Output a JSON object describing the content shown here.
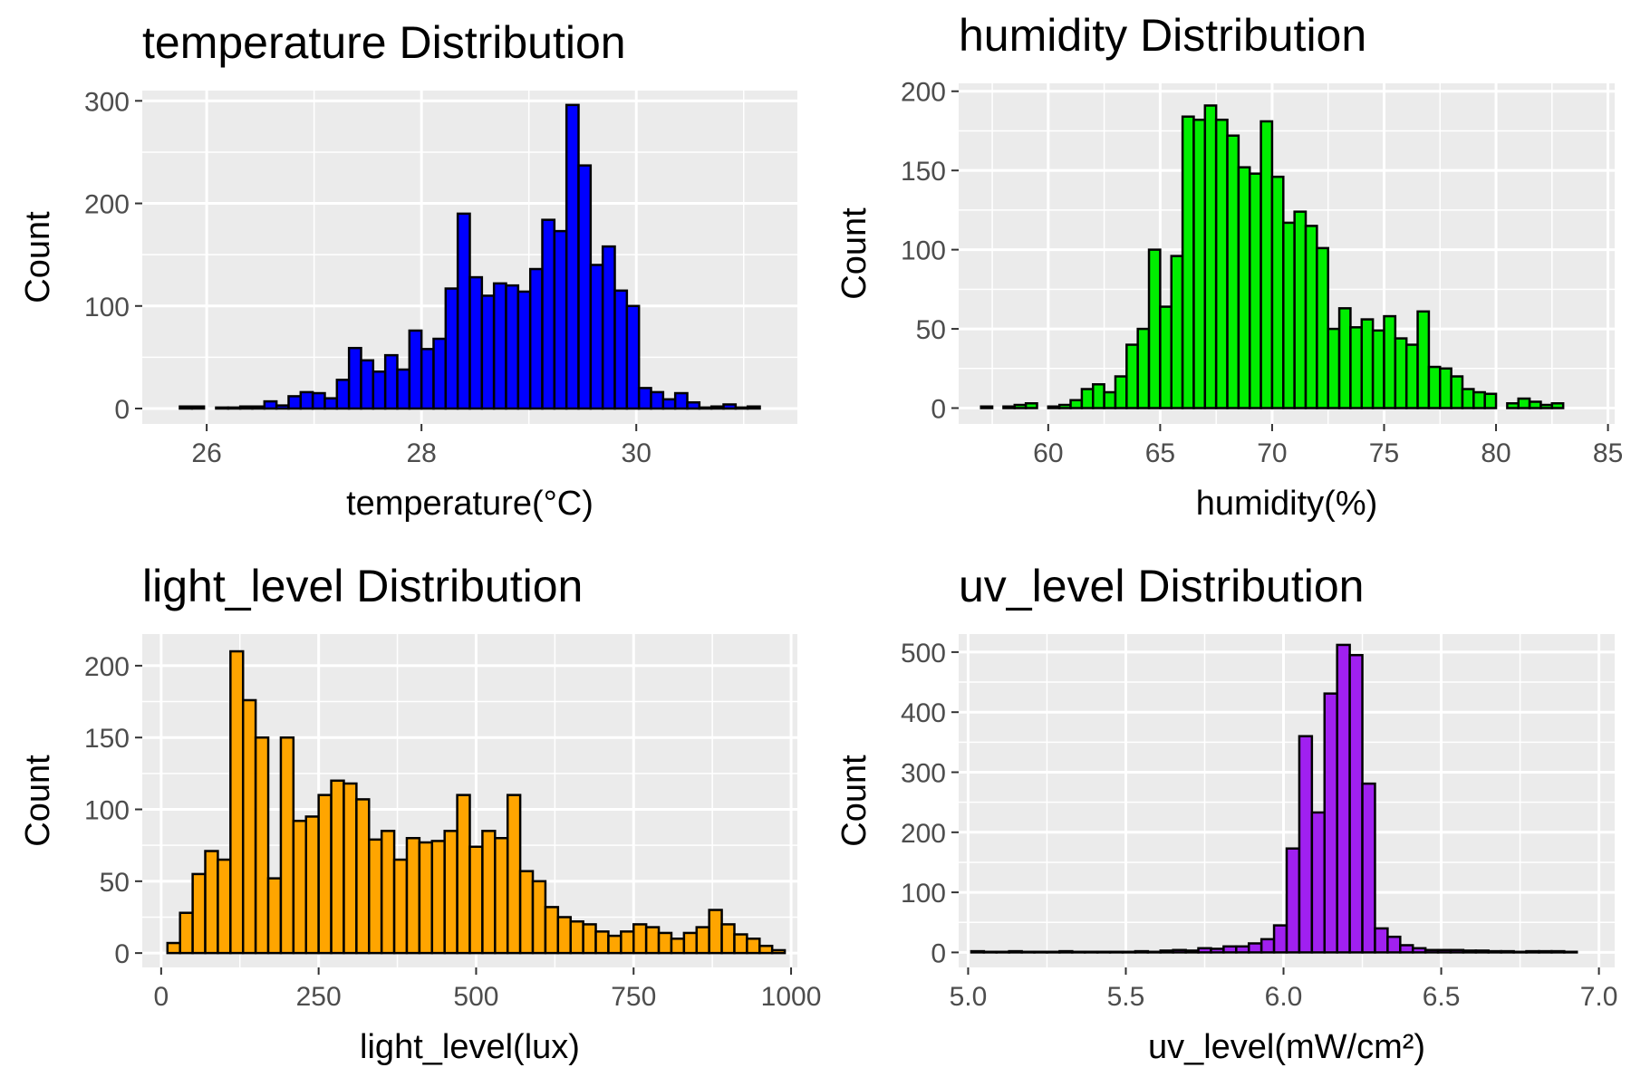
{
  "chart_data": [
    {
      "type": "bar",
      "title": "temperature Distribution",
      "xlabel": "temperature(°C)",
      "ylabel": "Count",
      "fill": "#0000ff",
      "edge": "#000000",
      "x_start": 25.75,
      "bin_width": 0.1125,
      "values": [
        2,
        2,
        0,
        1,
        1,
        2,
        2,
        7,
        3,
        12,
        16,
        15,
        10,
        28,
        59,
        47,
        36,
        52,
        38,
        76,
        58,
        68,
        117,
        190,
        128,
        110,
        122,
        120,
        114,
        136,
        184,
        173,
        296,
        237,
        140,
        158,
        115,
        100,
        20,
        16,
        9,
        15,
        6,
        1,
        2,
        4,
        1,
        2
      ],
      "xlim": [
        25.4,
        31.5
      ],
      "ylim": [
        -15,
        310
      ],
      "x_ticks": [
        26,
        28,
        30
      ],
      "x_tick_labels": [
        "26",
        "28",
        "30"
      ],
      "y_ticks": [
        0,
        100,
        200,
        300
      ],
      "y_tick_labels": [
        "0",
        "100",
        "200",
        "300"
      ]
    },
    {
      "type": "bar",
      "title": "humidity Distribution",
      "xlabel": "humidity(%)",
      "ylabel": "Count",
      "fill": "#00ee00",
      "edge": "#000000",
      "x_start": 57.0,
      "bin_width": 0.5,
      "values": [
        1,
        0,
        1,
        2,
        3,
        0,
        1,
        2,
        5,
        12,
        15,
        10,
        20,
        40,
        50,
        100,
        64,
        96,
        184,
        182,
        191,
        182,
        172,
        152,
        148,
        181,
        146,
        117,
        124,
        115,
        101,
        50,
        63,
        51,
        56,
        49,
        58,
        44,
        40,
        61,
        26,
        25,
        20,
        12,
        10,
        9,
        0,
        3,
        6,
        4,
        2,
        3
      ],
      "xlim": [
        56.0,
        85.3
      ],
      "ylim": [
        -10,
        205
      ],
      "x_ticks": [
        60,
        65,
        70,
        75,
        80,
        85
      ],
      "x_tick_labels": [
        "60",
        "65",
        "70",
        "75",
        "80",
        "85"
      ],
      "y_ticks": [
        0,
        50,
        100,
        150,
        200
      ],
      "y_tick_labels": [
        "0",
        "50",
        "100",
        "150",
        "200"
      ]
    },
    {
      "type": "bar",
      "title": "light_level Distribution",
      "xlabel": "light_level(lux)",
      "ylabel": "Count",
      "fill": "#ffa500",
      "edge": "#000000",
      "x_start": -10,
      "bin_width": 20,
      "values": [
        0,
        7,
        28,
        55,
        71,
        65,
        210,
        176,
        150,
        52,
        150,
        92,
        95,
        110,
        120,
        118,
        107,
        79,
        85,
        65,
        80,
        77,
        78,
        85,
        110,
        74,
        85,
        80,
        110,
        57,
        50,
        32,
        25,
        22,
        20,
        15,
        12,
        15,
        20,
        18,
        14,
        10,
        14,
        18,
        30,
        20,
        13,
        10,
        5,
        2
      ],
      "xlim": [
        -30,
        1010
      ],
      "ylim": [
        -10,
        222
      ],
      "x_ticks": [
        0,
        250,
        500,
        750,
        1000
      ],
      "x_tick_labels": [
        "0",
        "250",
        "500",
        "750",
        "1000"
      ],
      "y_ticks": [
        0,
        50,
        100,
        150,
        200
      ],
      "y_tick_labels": [
        "0",
        "50",
        "100",
        "150",
        "200"
      ]
    },
    {
      "type": "bar",
      "title": "uv_level Distribution",
      "xlabel": "uv_level(mW/cm²)",
      "ylabel": "Count",
      "fill": "#a020f0",
      "edge": "#000000",
      "x_start": 5.01,
      "bin_width": 0.04,
      "values": [
        2,
        1,
        1,
        2,
        1,
        1,
        1,
        2,
        1,
        1,
        1,
        1,
        1,
        2,
        1,
        3,
        4,
        3,
        7,
        6,
        10,
        10,
        15,
        22,
        45,
        173,
        360,
        233,
        431,
        512,
        495,
        281,
        40,
        26,
        12,
        7,
        4,
        4,
        4,
        3,
        3,
        2,
        2,
        1,
        2,
        2,
        2,
        1
      ],
      "xlim": [
        4.97,
        7.05
      ],
      "ylim": [
        -25,
        530
      ],
      "x_ticks": [
        5.0,
        5.5,
        6.0,
        6.5,
        7.0
      ],
      "x_tick_labels": [
        "5.0",
        "5.5",
        "6.0",
        "6.5",
        "7.0"
      ],
      "y_ticks": [
        0,
        100,
        200,
        300,
        400,
        500
      ],
      "y_tick_labels": [
        "0",
        "100",
        "200",
        "300",
        "400",
        "500"
      ]
    }
  ]
}
